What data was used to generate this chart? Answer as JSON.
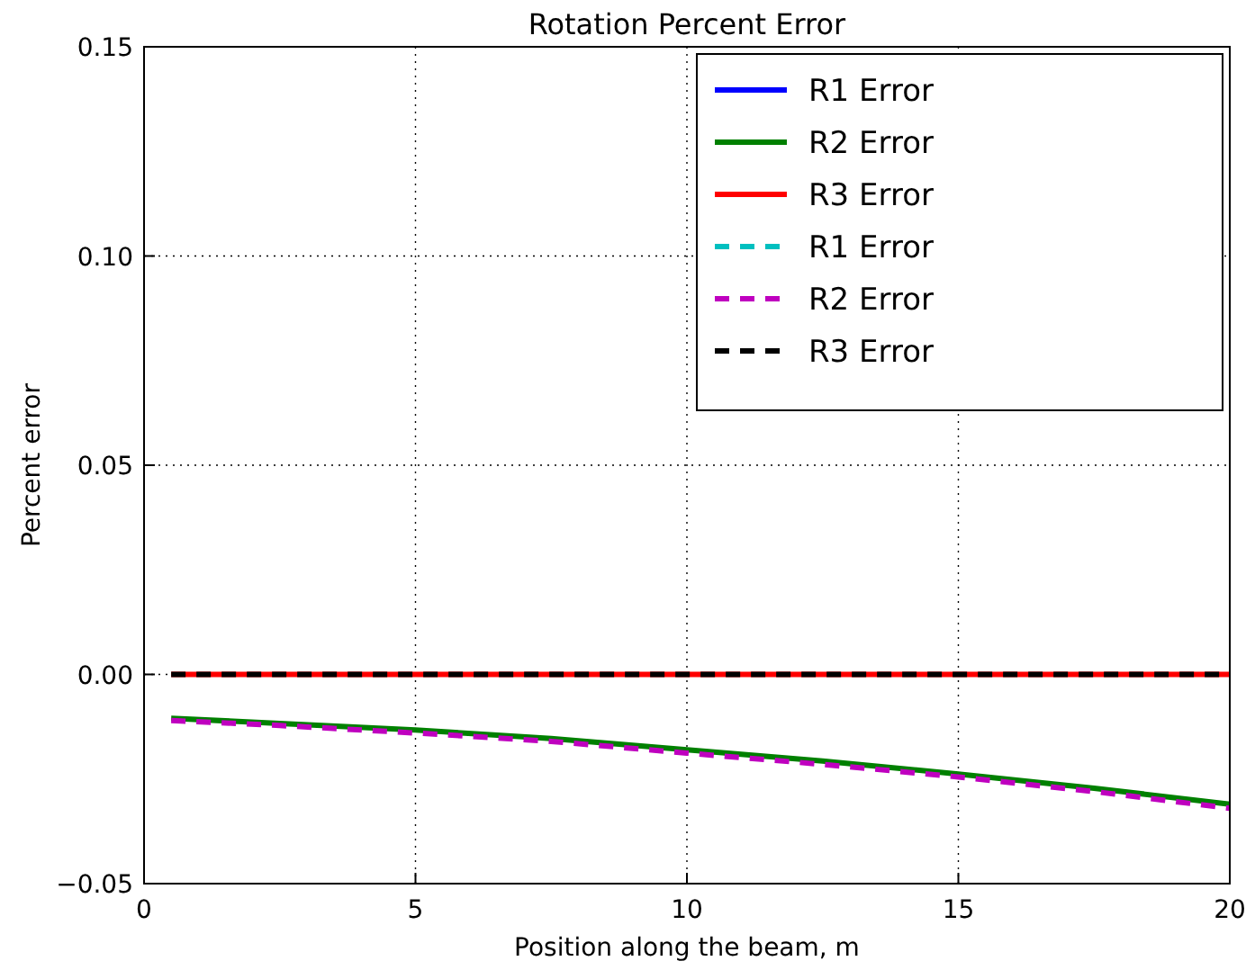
{
  "chart_data": {
    "type": "line",
    "title": "Rotation Percent Error",
    "xlabel": "Position along the beam, m",
    "ylabel": "Percent error",
    "x": [
      0.5,
      2.5,
      5,
      7.5,
      10,
      12.5,
      15,
      17.5,
      20
    ],
    "series": [
      {
        "name": "R1 Error",
        "color": "#0000ff",
        "line_style": "solid",
        "values": [
          null,
          null,
          null,
          null,
          null,
          null,
          null,
          null,
          null
        ]
      },
      {
        "name": "R2 Error",
        "color": "#008000",
        "line_style": "solid",
        "values": [
          -0.0105,
          -0.0117,
          -0.0133,
          -0.0153,
          -0.018,
          -0.0207,
          -0.0238,
          -0.0272,
          -0.031
        ]
      },
      {
        "name": "R3 Error",
        "color": "#ff0000",
        "line_style": "solid",
        "values": [
          0,
          0,
          0,
          0,
          0,
          0,
          0,
          0,
          0
        ]
      },
      {
        "name": "R1 Error",
        "color": "#00bfbf",
        "line_style": "dashed",
        "values": [
          null,
          null,
          null,
          null,
          null,
          null,
          null,
          null,
          null
        ]
      },
      {
        "name": "R2 Error",
        "color": "#bf00bf",
        "line_style": "dashed",
        "values": [
          -0.011,
          -0.0122,
          -0.014,
          -0.016,
          -0.0188,
          -0.0215,
          -0.0245,
          -0.028,
          -0.032
        ]
      },
      {
        "name": "R3 Error",
        "color": "#000000",
        "line_style": "dashed",
        "values": [
          0,
          0,
          0,
          0,
          0,
          0,
          0,
          0,
          0
        ]
      }
    ],
    "xlim": [
      0,
      20
    ],
    "xticks": [
      0,
      5,
      10,
      15,
      20
    ],
    "ylim": [
      -0.05,
      0.15
    ],
    "yticks": [
      {
        "value": -0.05,
        "label": "−0.05"
      },
      {
        "value": 0,
        "label": "0.00"
      },
      {
        "value": 0.05,
        "label": "0.05"
      },
      {
        "value": 0.1,
        "label": "0.10"
      },
      {
        "value": 0.15,
        "label": "0.15"
      }
    ],
    "grid": true,
    "legend": "top right"
  }
}
